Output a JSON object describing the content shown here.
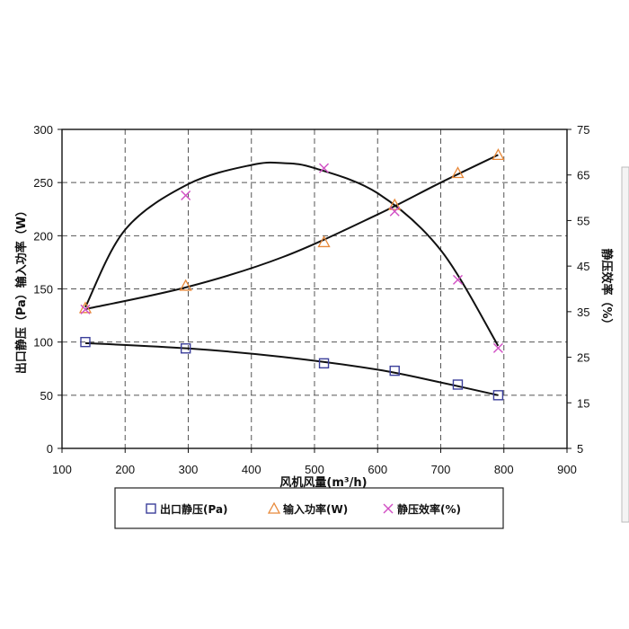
{
  "chart_data": {
    "type": "scatter",
    "xlabel": "风机风量(m³/h)",
    "ylabel_left": "出口静压（Pa）输入功率（W）",
    "ylabel_right": "静压效率（%）",
    "xlim": [
      100,
      900
    ],
    "x_ticks": [
      100,
      200,
      300,
      400,
      500,
      600,
      700,
      800,
      900
    ],
    "ylim_left": [
      0,
      300
    ],
    "y_ticks_left": [
      0,
      50,
      100,
      150,
      200,
      250,
      300
    ],
    "ylim_right": [
      5,
      75
    ],
    "y_ticks_right": [
      5,
      15,
      25,
      35,
      45,
      55,
      65,
      75
    ],
    "grid": true,
    "legend_position": "bottom",
    "series": [
      {
        "name": "出口静压(Pa)",
        "axis": "left",
        "marker": "square",
        "color": "#3b3f9a",
        "x": [
          137,
          296,
          515,
          627,
          727,
          791
        ],
        "y": [
          100,
          94,
          80,
          73,
          60,
          50
        ],
        "trend": [
          [
            137,
            99
          ],
          [
            300,
            94
          ],
          [
            450,
            86
          ],
          [
            600,
            74
          ],
          [
            700,
            62
          ],
          [
            791,
            50
          ]
        ]
      },
      {
        "name": "输入功率(W)",
        "axis": "left",
        "marker": "triangle",
        "color": "#e8893a",
        "x": [
          137,
          296,
          515,
          627,
          727,
          791
        ],
        "y": [
          132,
          153,
          194,
          229,
          259,
          276
        ],
        "trend": [
          [
            137,
            131
          ],
          [
            300,
            152
          ],
          [
            450,
            180
          ],
          [
            600,
            220
          ],
          [
            700,
            250
          ],
          [
            791,
            276
          ]
        ]
      },
      {
        "name": "静压效率(%)",
        "axis": "right",
        "marker": "x",
        "color": "#d14fc4",
        "x": [
          137,
          296,
          515,
          627,
          727,
          791
        ],
        "y": [
          35.5,
          60.5,
          66.5,
          57,
          42,
          27
        ],
        "trend": [
          [
            137,
            36
          ],
          [
            200,
            53
          ],
          [
            300,
            63
          ],
          [
            400,
            67.2
          ],
          [
            450,
            67.6
          ],
          [
            500,
            66.5
          ],
          [
            600,
            61
          ],
          [
            700,
            48.5
          ],
          [
            791,
            27.5
          ]
        ]
      }
    ]
  }
}
